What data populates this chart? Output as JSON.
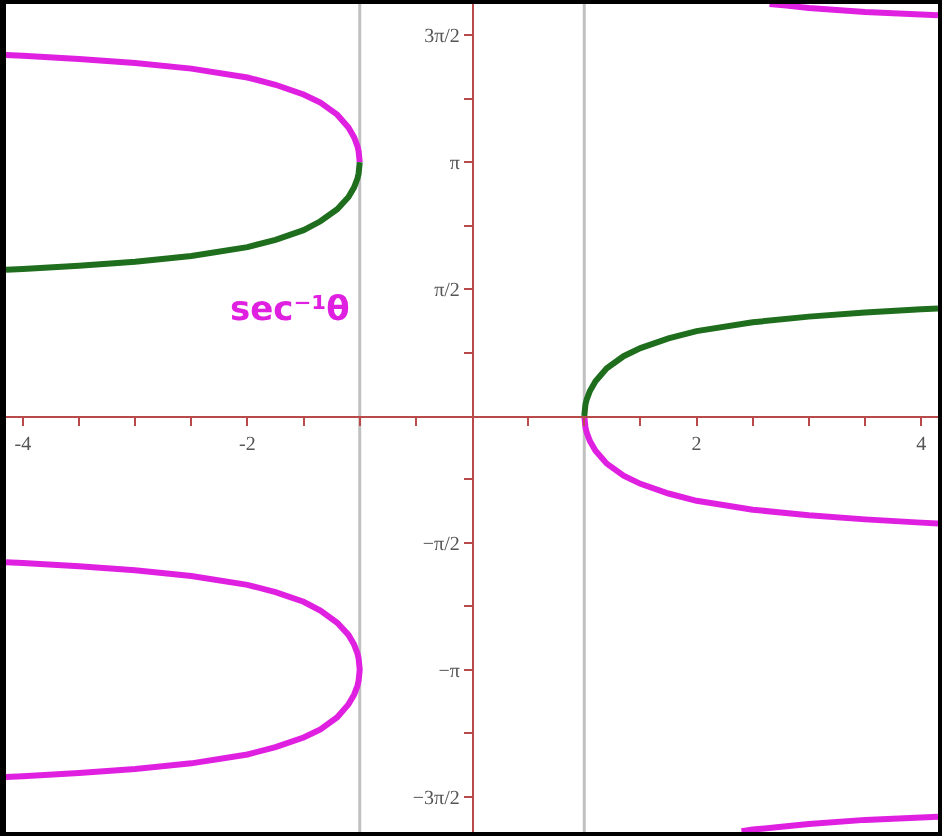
{
  "chart_data": {
    "type": "line",
    "xlim": [
      -4.15,
      4.15
    ],
    "ylim": [
      -5.15,
      5.1
    ],
    "xticks": [
      -4,
      {
        "value": -3.5,
        "label": null
      },
      {
        "value": -3,
        "label": null
      },
      {
        "value": -2.5,
        "label": null
      },
      -2,
      {
        "value": -1.5,
        "label": null
      },
      {
        "value": -1,
        "label": null
      },
      {
        "value": -0.5,
        "label": null
      },
      {
        "value": 0.5,
        "label": null
      },
      {
        "value": 1,
        "label": null
      },
      {
        "value": 1.5,
        "label": null
      },
      2,
      {
        "value": 2.5,
        "label": null
      },
      {
        "value": 3,
        "label": null
      },
      {
        "value": 3.5,
        "label": null
      },
      4
    ],
    "yticks": [
      {
        "value": 4.712,
        "label": "3π/2"
      },
      {
        "value": 3.927,
        "label": null
      },
      {
        "value": 3.142,
        "label": "π"
      },
      {
        "value": 2.356,
        "label": null
      },
      {
        "value": 1.571,
        "label": "π/2"
      },
      {
        "value": 0.785,
        "label": null
      },
      {
        "value": -0.785,
        "label": null
      },
      {
        "value": -1.571,
        "label": "−π/2"
      },
      {
        "value": -2.356,
        "label": null
      },
      {
        "value": -3.142,
        "label": "−π"
      },
      {
        "value": -3.927,
        "label": null
      },
      {
        "value": -4.712,
        "label": "−3π/2"
      }
    ],
    "ref_lines": [
      {
        "axis": "x",
        "value": -1,
        "color": "#c0c0c0"
      },
      {
        "axis": "x",
        "value": 1,
        "color": "#c0c0c0"
      }
    ],
    "series": [
      {
        "name": "sec⁻¹θ",
        "color": "#e020e0",
        "x": [
          1,
          1.01,
          1.02,
          1.05,
          1.1,
          1.2,
          1.35,
          1.5,
          1.75,
          2,
          2.5,
          3,
          3.5,
          4,
          4.15,
          null,
          2.65,
          2.8,
          3,
          3.5,
          4,
          4.15,
          null,
          2.4,
          2.5,
          2.8,
          3,
          3.5,
          4,
          4.15,
          null,
          -1,
          -1.01,
          -1.02,
          -1.05,
          -1.1,
          -1.2,
          -1.35,
          -1.5,
          -1.75,
          -2,
          -2.5,
          -3,
          -3.5,
          -4,
          -4.15,
          null,
          -4.15,
          -4,
          -3.5,
          -3,
          -2.5,
          -2,
          -1.75,
          -1.5,
          -1.35,
          -1.2,
          -1.1,
          -1.05,
          -1.02,
          -1.01,
          -1,
          -1.01,
          -1.02,
          -1.05,
          -1.1,
          -1.2,
          -1.35,
          -1.5,
          -1.75,
          -2,
          -2.5,
          -3,
          -3.5,
          -4,
          -4.15
        ],
        "values": [
          0,
          -0.14,
          -0.2,
          -0.31,
          -0.43,
          -0.59,
          -0.74,
          -0.84,
          -0.96,
          -1.05,
          -1.16,
          -1.23,
          -1.28,
          -1.32,
          -1.33,
          null,
          5.1,
          5.08,
          5.05,
          5.0,
          4.97,
          4.96,
          null,
          -5.14,
          -5.12,
          -5.08,
          -5.05,
          -5.0,
          -4.97,
          -4.96,
          null,
          3.14,
          3.28,
          3.34,
          3.45,
          3.57,
          3.73,
          3.88,
          3.98,
          4.1,
          4.19,
          4.3,
          4.37,
          4.42,
          4.46,
          4.47,
          null,
          -1.81,
          -1.82,
          -1.86,
          -1.91,
          -1.98,
          -2.09,
          -2.18,
          -2.3,
          -2.41,
          -2.56,
          -2.71,
          -2.83,
          -2.94,
          -3.0,
          -3.14,
          -3.28,
          -3.34,
          -3.45,
          -3.57,
          -3.73,
          -3.88,
          -3.98,
          -4.1,
          -4.19,
          -4.3,
          -4.37,
          -4.42,
          -4.46,
          -4.47
        ]
      },
      {
        "color": "#1e6e1e",
        "x": [
          1,
          1.01,
          1.02,
          1.05,
          1.1,
          1.2,
          1.35,
          1.5,
          1.75,
          2,
          2.5,
          3,
          3.5,
          4,
          4.15,
          null,
          -4.15,
          -4,
          -3.5,
          -3,
          -2.5,
          -2,
          -1.75,
          -1.5,
          -1.35,
          -1.2,
          -1.1,
          -1.05,
          -1.02,
          -1.01,
          -1
        ],
        "values": [
          0,
          0.14,
          0.2,
          0.31,
          0.43,
          0.59,
          0.74,
          0.84,
          0.96,
          1.05,
          1.16,
          1.23,
          1.28,
          1.32,
          1.33,
          null,
          1.81,
          1.82,
          1.86,
          1.91,
          1.98,
          2.09,
          2.18,
          2.3,
          2.41,
          2.56,
          2.71,
          2.83,
          2.94,
          3.0,
          3.14
        ]
      }
    ]
  }
}
